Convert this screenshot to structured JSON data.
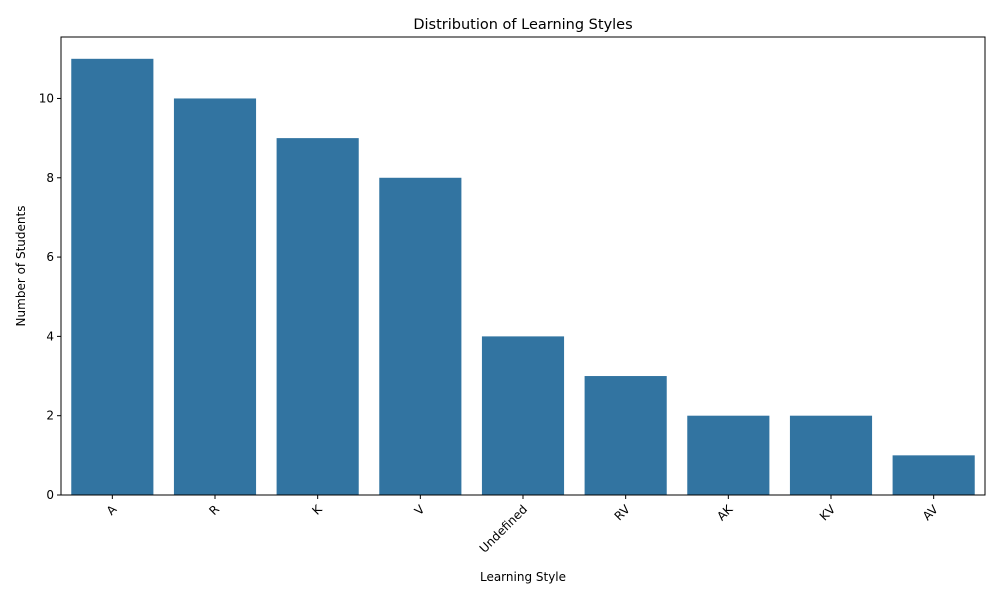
{
  "chart_data": {
    "type": "bar",
    "title": "Distribution of Learning Styles",
    "xlabel": "Learning Style",
    "ylabel": "Number of Students",
    "categories": [
      "A",
      "R",
      "K",
      "V",
      "Undefined",
      "RV",
      "AK",
      "KV",
      "AV"
    ],
    "values": [
      11,
      10,
      9,
      8,
      4,
      3,
      2,
      2,
      1
    ],
    "yticks": [
      0,
      2,
      4,
      6,
      8,
      10
    ],
    "ylim": [
      0,
      11.55
    ],
    "bar_color": "#3274a1",
    "xtick_rotation": 45,
    "grid": false
  }
}
